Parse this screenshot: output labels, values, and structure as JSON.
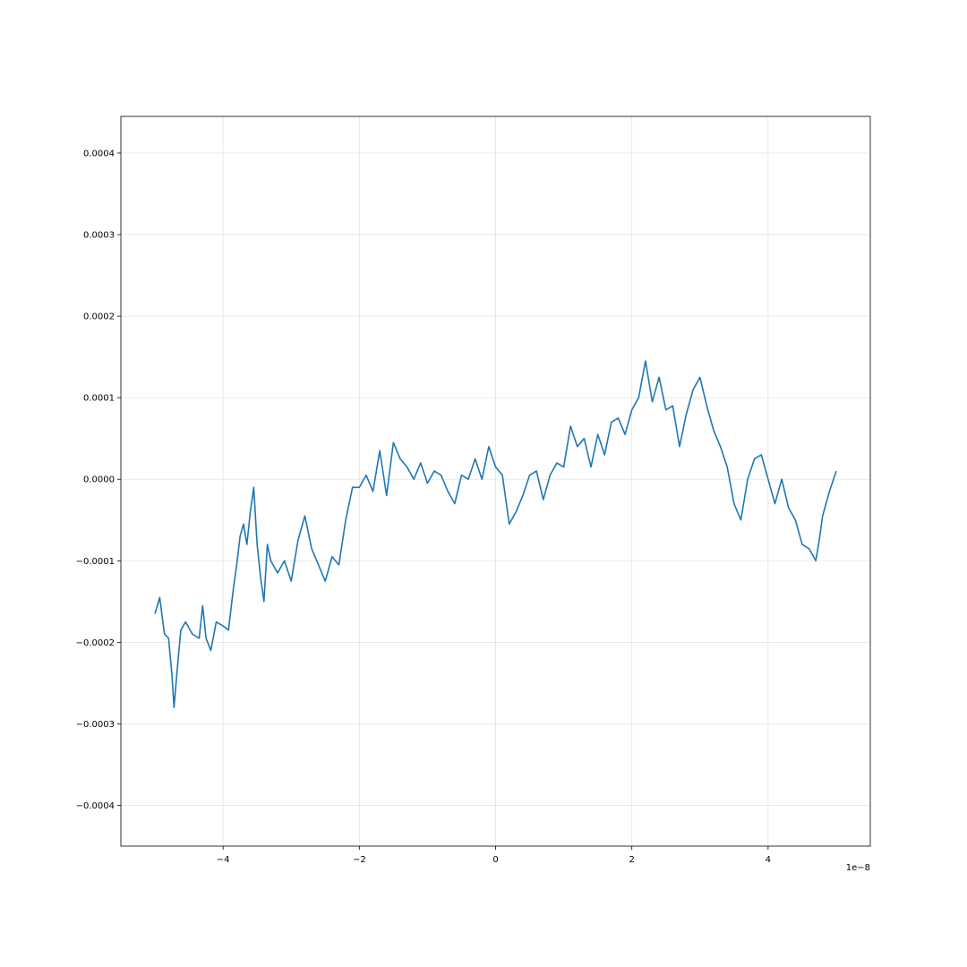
{
  "chart_data": {
    "type": "line",
    "title": "",
    "xlabel": "",
    "ylabel": "",
    "x_offset_label": "1e−8",
    "xlim": [
      -5.5,
      5.5
    ],
    "ylim": [
      -0.00045,
      0.000445
    ],
    "grid": true,
    "line_color": "#1f77b4",
    "x_ticks": [
      -4,
      -2,
      0,
      2,
      4
    ],
    "x_tick_labels": [
      "−4",
      "−2",
      "0",
      "2",
      "4"
    ],
    "y_ticks": [
      -0.0004,
      -0.0003,
      -0.0002,
      -0.0001,
      0.0,
      0.0001,
      0.0002,
      0.0003,
      0.0004
    ],
    "y_tick_labels": [
      "−0.0004",
      "−0.0003",
      "−0.0002",
      "−0.0001",
      "0.0000",
      "0.0001",
      "0.0002",
      "0.0003",
      "0.0004"
    ],
    "series": [
      {
        "x": [
          -5.0,
          -4.93,
          -4.86,
          -4.8,
          -4.75,
          -4.72,
          -4.68,
          -4.62,
          -4.55,
          -4.45,
          -4.35,
          -4.3,
          -4.25,
          -4.18,
          -4.1,
          -4.0,
          -3.92,
          -3.85,
          -3.8,
          -3.75,
          -3.7,
          -3.65,
          -3.6,
          -3.55,
          -3.5,
          -3.45,
          -3.4,
          -3.35,
          -3.3,
          -3.2,
          -3.1,
          -3.0,
          -2.9,
          -2.8,
          -2.7,
          -2.6,
          -2.5,
          -2.4,
          -2.3,
          -2.2,
          -2.1,
          -2.0,
          -1.9,
          -1.8,
          -1.7,
          -1.6,
          -1.5,
          -1.4,
          -1.3,
          -1.2,
          -1.1,
          -1.0,
          -0.9,
          -0.8,
          -0.7,
          -0.6,
          -0.5,
          -0.4,
          -0.3,
          -0.2,
          -0.1,
          0.0,
          0.1,
          0.2,
          0.3,
          0.4,
          0.5,
          0.6,
          0.7,
          0.8,
          0.9,
          1.0,
          1.1,
          1.2,
          1.3,
          1.4,
          1.5,
          1.6,
          1.7,
          1.8,
          1.9,
          2.0,
          2.1,
          2.2,
          2.3,
          2.4,
          2.5,
          2.6,
          2.7,
          2.8,
          2.9,
          3.0,
          3.1,
          3.2,
          3.3,
          3.4,
          3.5,
          3.6,
          3.7,
          3.8,
          3.9,
          4.0,
          4.1,
          4.2,
          4.3,
          4.4,
          4.5,
          4.6,
          4.7,
          4.75,
          4.8,
          4.9,
          5.0
        ],
        "y": [
          -0.000165,
          -0.000145,
          -0.00019,
          -0.000195,
          -0.00024,
          -0.00028,
          -0.00024,
          -0.000185,
          -0.000175,
          -0.00019,
          -0.000195,
          -0.000155,
          -0.000195,
          -0.00021,
          -0.000175,
          -0.00018,
          -0.000185,
          -0.000135,
          -0.000105,
          -7e-05,
          -5.5e-05,
          -8e-05,
          -4e-05,
          -1e-05,
          -8e-05,
          -0.00012,
          -0.00015,
          -8e-05,
          -0.0001,
          -0.000115,
          -0.0001,
          -0.000125,
          -7.5e-05,
          -4.5e-05,
          -8.5e-05,
          -0.000105,
          -0.000125,
          -9.5e-05,
          -0.000105,
          -5e-05,
          -1e-05,
          -1e-05,
          5e-06,
          -1.5e-05,
          3.5e-05,
          -2e-05,
          4.5e-05,
          2.5e-05,
          1.5e-05,
          0.0,
          2e-05,
          -5e-06,
          1e-05,
          5e-06,
          -1.5e-05,
          -3e-05,
          5e-06,
          0.0,
          2.5e-05,
          0.0,
          4e-05,
          1.5e-05,
          5e-06,
          -5.5e-05,
          -4e-05,
          -2e-05,
          5e-06,
          1e-05,
          -2.5e-05,
          5e-06,
          2e-05,
          1.5e-05,
          6.5e-05,
          4e-05,
          5e-05,
          1.5e-05,
          5.5e-05,
          3e-05,
          7e-05,
          7.5e-05,
          5.5e-05,
          8.5e-05,
          0.0001,
          0.000145,
          9.5e-05,
          0.000125,
          8.5e-05,
          9e-05,
          4e-05,
          8e-05,
          0.00011,
          0.000125,
          9e-05,
          6e-05,
          4e-05,
          1.5e-05,
          -3e-05,
          -5e-05,
          0.0,
          2.5e-05,
          3e-05,
          0.0,
          -3e-05,
          0.0,
          -3.5e-05,
          -5e-05,
          -8e-05,
          -8.5e-05,
          -0.0001,
          -7.5e-05,
          -4.5e-05,
          -1.5e-05,
          1e-05
        ]
      }
    ]
  }
}
